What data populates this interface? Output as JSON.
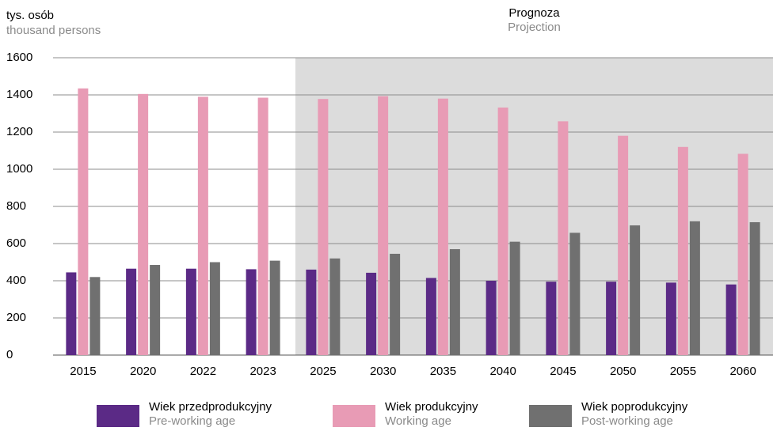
{
  "chart_data": {
    "type": "bar",
    "y_label": "tys. osób",
    "y_label_en": "thousand persons",
    "projection_label": "Prognoza",
    "projection_label_en": "Projection",
    "projection_from_index": 4,
    "shade_color": "#dcdcdc",
    "categories": [
      "2015",
      "2020",
      "2022",
      "2023",
      "2025",
      "2030",
      "2035",
      "2040",
      "2045",
      "2050",
      "2055",
      "2060"
    ],
    "series": [
      {
        "name": "Wiek przedprodukcyjny",
        "name_en": "Pre-working age",
        "color": "#5b2a86",
        "values": [
          445,
          465,
          465,
          462,
          460,
          443,
          415,
          400,
          395,
          395,
          390,
          380
        ]
      },
      {
        "name": "Wiek produkcyjny",
        "name_en": "Working age",
        "color": "#e89bb5",
        "values": [
          1435,
          1405,
          1390,
          1385,
          1378,
          1393,
          1380,
          1332,
          1258,
          1180,
          1120,
          1083
        ]
      },
      {
        "name": "Wiek poprodukcyjny",
        "name_en": "Post-working age",
        "color": "#707070",
        "values": [
          420,
          485,
          500,
          508,
          520,
          545,
          570,
          610,
          658,
          698,
          720,
          715
        ]
      }
    ],
    "ylim": [
      0,
      1600
    ],
    "yticks": [
      0,
      200,
      400,
      600,
      800,
      1000,
      1200,
      1400,
      1600
    ],
    "grid": true
  }
}
